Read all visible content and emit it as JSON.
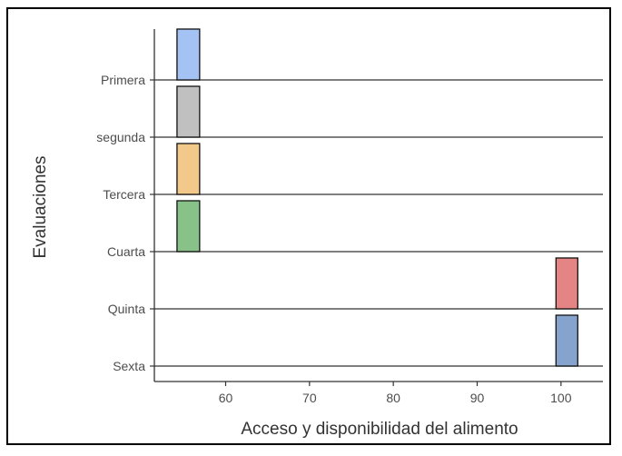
{
  "chart_data": {
    "type": "ridgeline",
    "title": "",
    "xlabel": "Acceso y disponibilidad  del alimento",
    "ylabel": "Evaluaciones",
    "xlim": [
      51.5,
      105
    ],
    "xticks": [
      60,
      70,
      80,
      90,
      100
    ],
    "grid": false,
    "legend": "none",
    "categories": [
      "Primera",
      "segunda",
      "Tercera",
      "Cuarta",
      "Quinta",
      "Sexta"
    ],
    "series": [
      {
        "category": "Primera",
        "x_range": [
          54.2,
          56.9
        ],
        "color": "#a4c2f4"
      },
      {
        "category": "segunda",
        "x_range": [
          54.2,
          56.9
        ],
        "color": "#c0c0c0"
      },
      {
        "category": "Tercera",
        "x_range": [
          54.2,
          56.9
        ],
        "color": "#f2c98a"
      },
      {
        "category": "Cuarta",
        "x_range": [
          54.2,
          56.9
        ],
        "color": "#88c288"
      },
      {
        "category": "Quinta",
        "x_range": [
          99.4,
          102.0
        ],
        "color": "#e48484"
      },
      {
        "category": "Sexta",
        "x_range": [
          99.4,
          102.0
        ],
        "color": "#85a3cc"
      }
    ]
  }
}
